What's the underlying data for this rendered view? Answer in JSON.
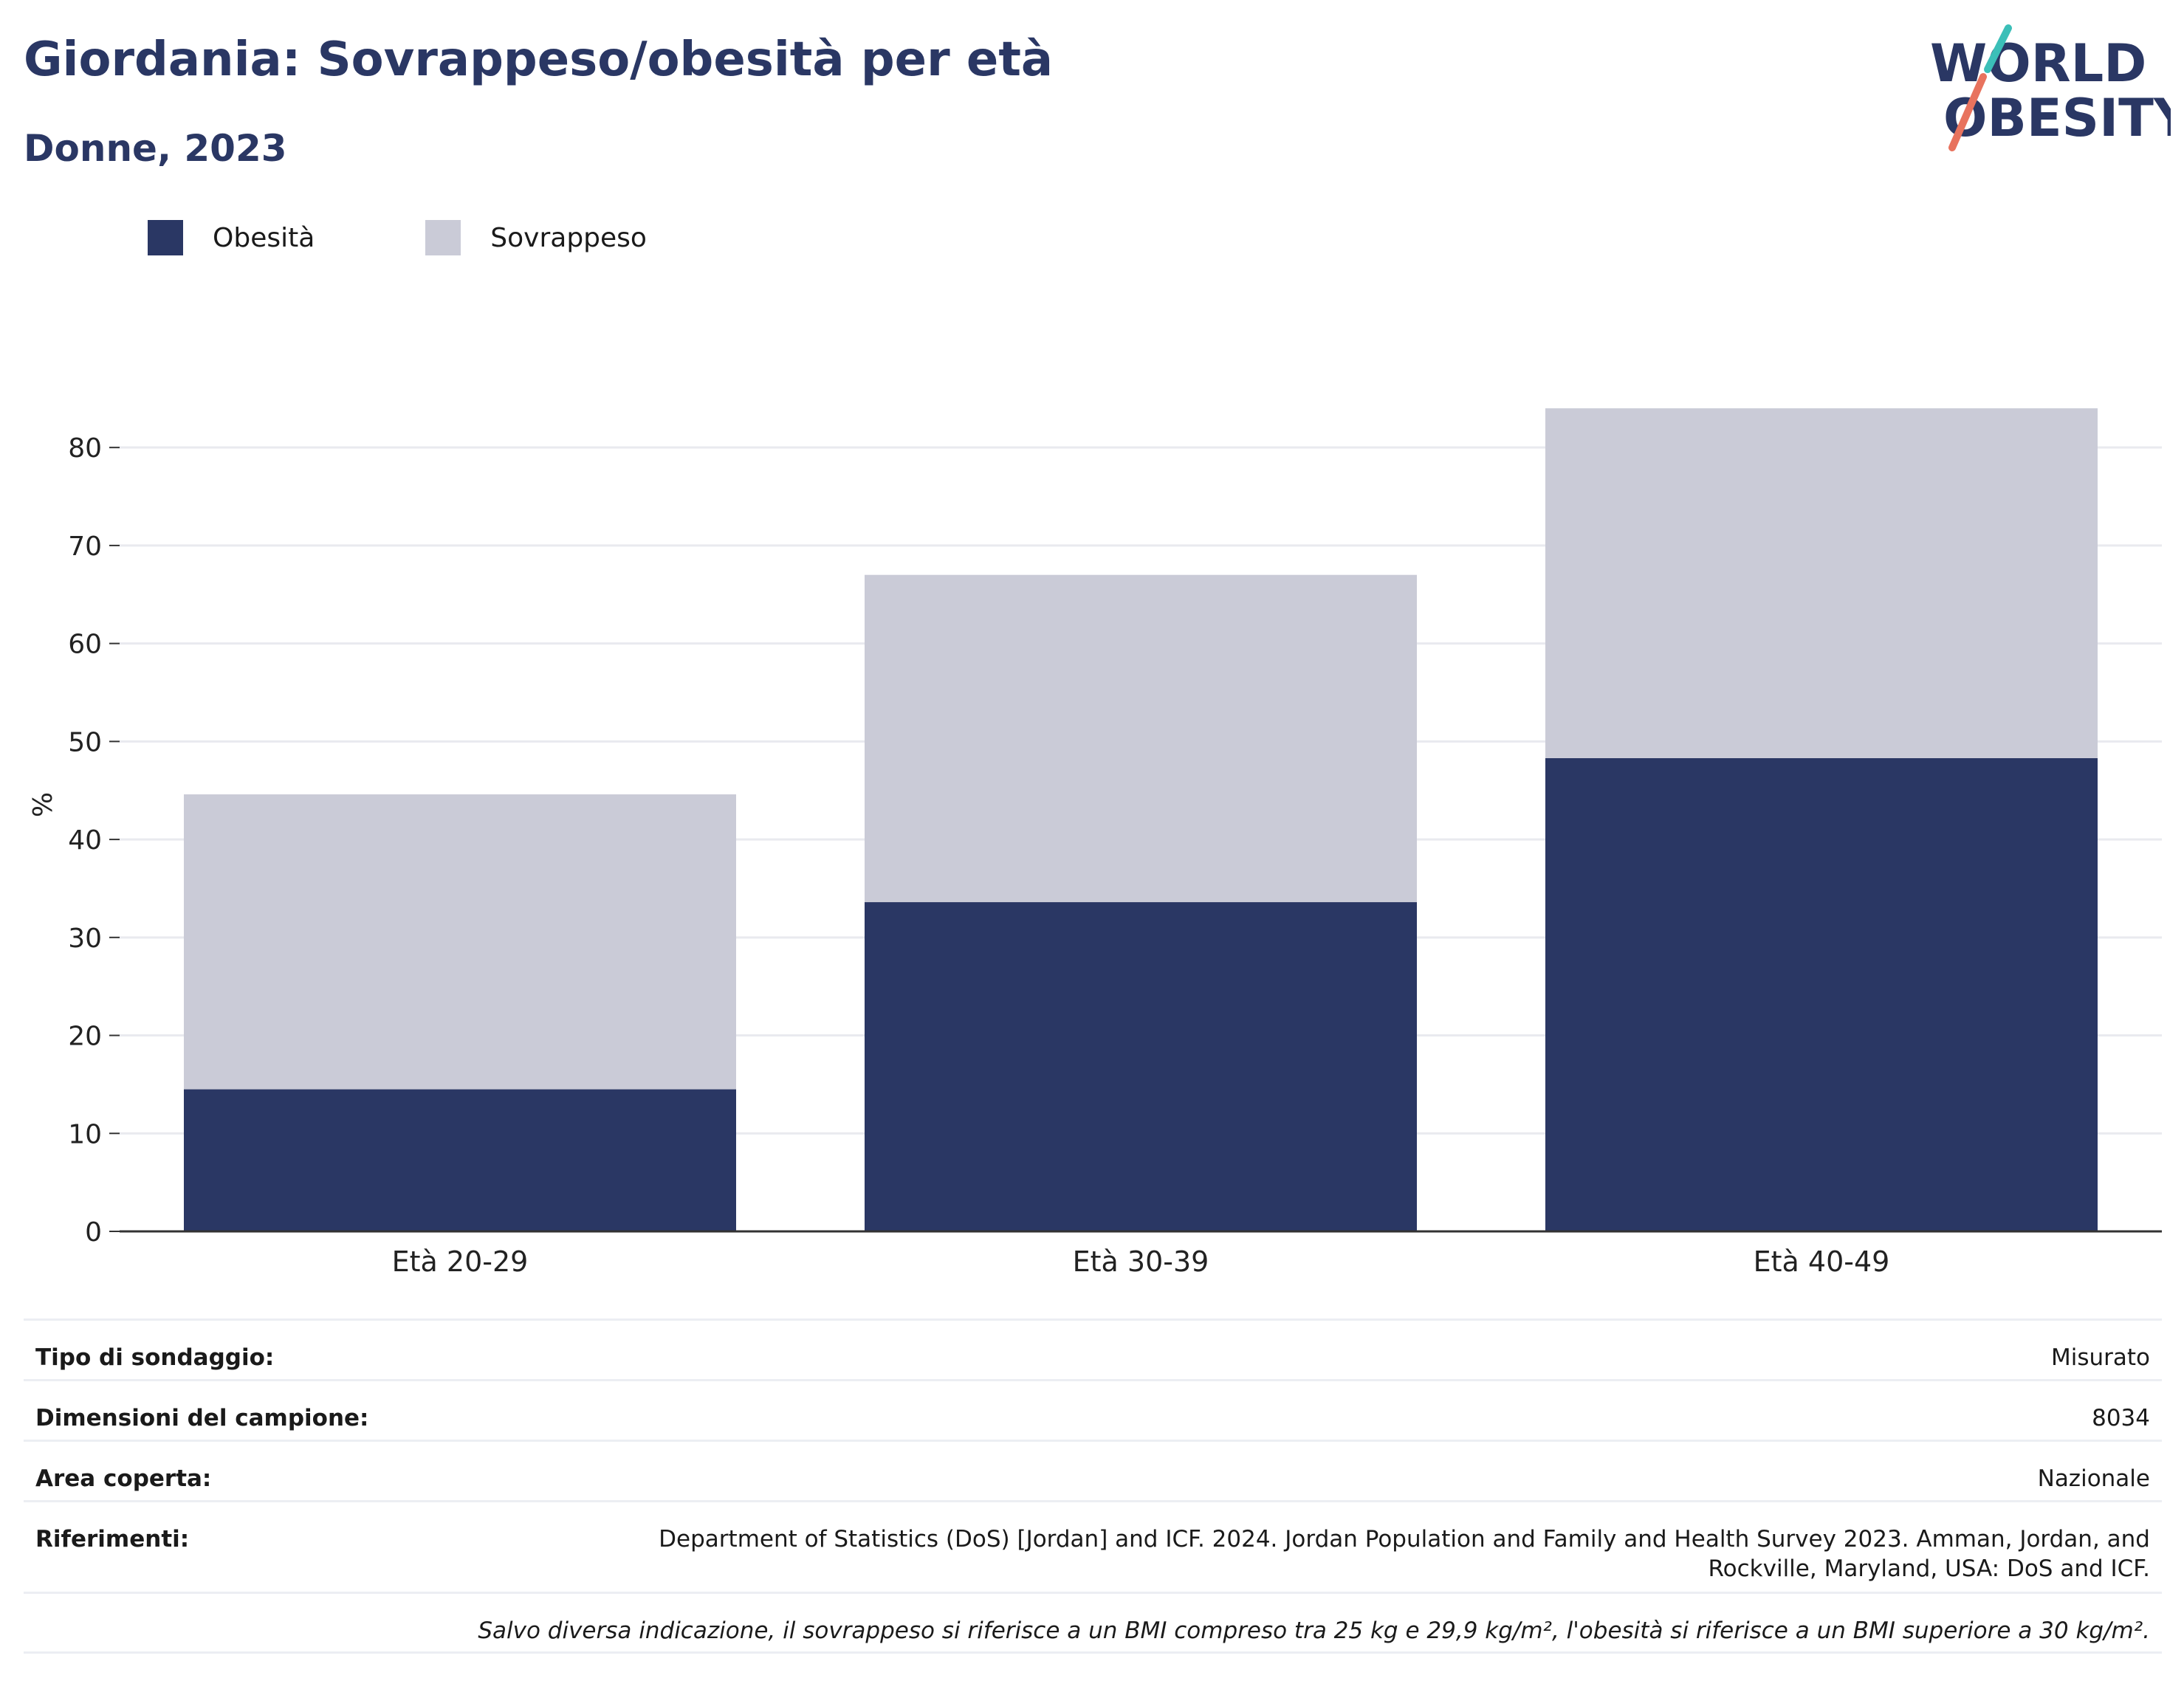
{
  "title": "Giordania: Sovrappeso/obesità per età",
  "subtitle": "Donne, 2023",
  "logo": {
    "line1": "WORLD",
    "line2": "OBESITY",
    "accent_teal": "#3bbfb8",
    "accent_coral": "#e8735e"
  },
  "colors": {
    "obesity": "#2a3764",
    "overweight": "#cacbd7",
    "title": "#2a3764"
  },
  "legend": [
    {
      "label": "Obesità",
      "color": "#2a3764"
    },
    {
      "label": "Sovrappeso",
      "color": "#cacbd7"
    }
  ],
  "chart_data": {
    "type": "bar",
    "stacked": true,
    "categories": [
      "Età 20-29",
      "Età 30-39",
      "Età 40-49"
    ],
    "series": [
      {
        "name": "Obesità",
        "values": [
          14.5,
          33.6,
          48.3
        ]
      },
      {
        "name": "Sovrappeso",
        "values": [
          30.1,
          33.4,
          35.7
        ]
      }
    ],
    "ylabel": "%",
    "ylim": [
      0,
      88
    ],
    "yticks": [
      0,
      10,
      20,
      30,
      40,
      50,
      60,
      70,
      80
    ],
    "grid": true,
    "legend_position": "top-left"
  },
  "info": {
    "rows": [
      {
        "label": "Tipo di sondaggio:",
        "value": "Misurato"
      },
      {
        "label": "Dimensioni del campione:",
        "value": "8034"
      },
      {
        "label": "Area coperta:",
        "value": "Nazionale"
      },
      {
        "label": "Riferimenti:",
        "value": "Department of Statistics (DoS) [Jordan] and ICF. 2024. Jordan Population and Family and Health Survey 2023. Amman, Jordan, and Rockville, Maryland, USA: DoS and ICF."
      }
    ],
    "note": "Salvo diversa indicazione, il sovrappeso si riferisce a un BMI compreso tra 25 kg e 29,9 kg/m², l'obesità si riferisce a un BMI superiore a 30 kg/m²."
  }
}
